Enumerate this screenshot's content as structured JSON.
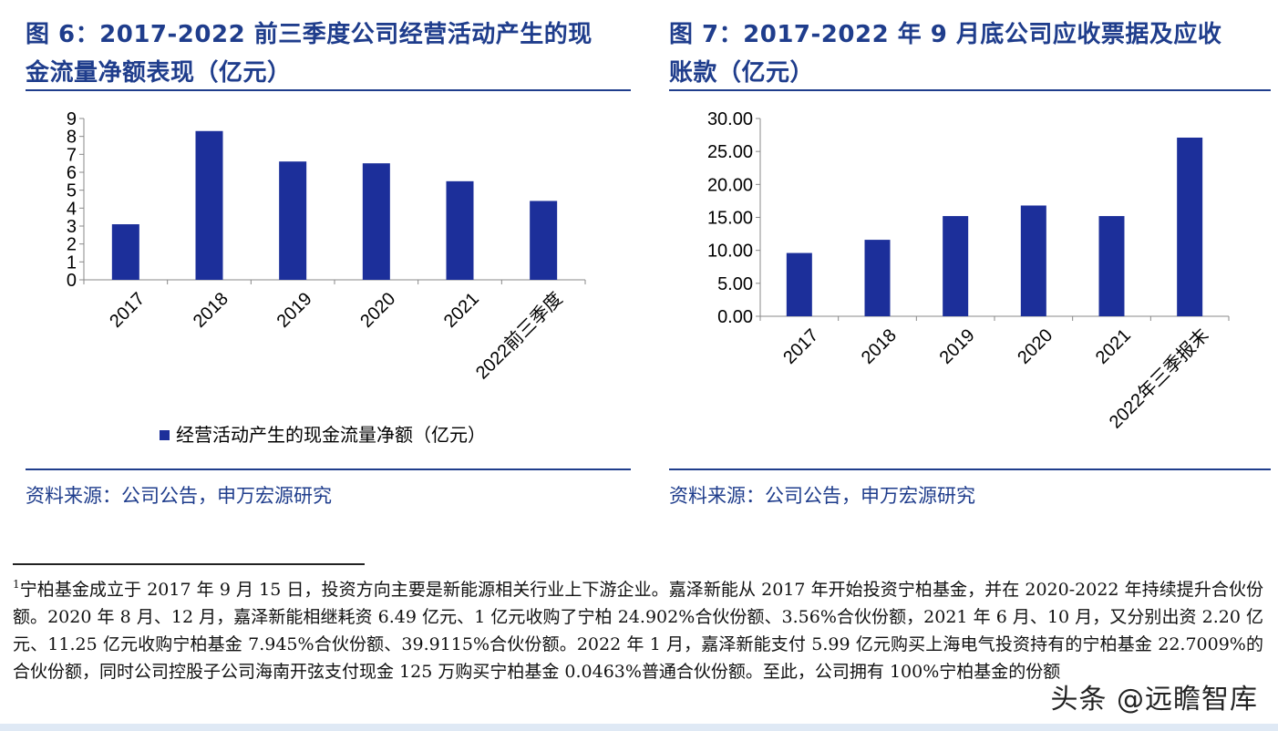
{
  "left": {
    "title_line1": "图 6：2017-2022 前三季度公司经营活动产生的现",
    "title_line2": "金流量净额表现（亿元）",
    "legend": "经营活动产生的现金流量净额（亿元）",
    "source": "资料来源：公司公告，申万宏源研究"
  },
  "right": {
    "title_line1": "图 7：2017-2022 年 9 月底公司应收票据及应收",
    "title_line2": "账款（亿元）",
    "source": "资料来源：公司公告，申万宏源研究"
  },
  "colors": {
    "bar": "#1c2f9a",
    "title": "#1f3d8c",
    "axis": "#888888"
  },
  "chart_data": [
    {
      "type": "bar",
      "title": "图 6：2017-2022 前三季度公司经营活动产生的现金流量净额表现（亿元）",
      "categories": [
        "2017",
        "2018",
        "2019",
        "2020",
        "2021",
        "2022前三季度"
      ],
      "series": [
        {
          "name": "经营活动产生的现金流量净额（亿元）",
          "values": [
            3.1,
            8.3,
            6.6,
            6.5,
            5.5,
            4.4
          ]
        }
      ],
      "yticks": [
        "0",
        "1",
        "2",
        "3",
        "4",
        "5",
        "6",
        "7",
        "8",
        "9"
      ],
      "ylim": [
        0,
        9
      ],
      "grid": false,
      "legend_position": "bottom"
    },
    {
      "type": "bar",
      "title": "图 7：2017-2022 年 9 月底公司应收票据及应收账款（亿元）",
      "categories": [
        "2017",
        "2018",
        "2019",
        "2020",
        "2021",
        "2022年三季报末"
      ],
      "series": [
        {
          "values": [
            9.6,
            11.6,
            15.2,
            16.8,
            15.2,
            27.1
          ]
        }
      ],
      "yticks": [
        "0.00",
        "5.00",
        "10.00",
        "15.00",
        "20.00",
        "25.00",
        "30.00"
      ],
      "ylim": [
        0,
        30
      ],
      "grid": false,
      "legend_position": "none"
    }
  ],
  "footnote": {
    "marker": "1",
    "text": "宁柏基金成立于 2017 年 9 月 15 日，投资方向主要是新能源相关行业上下游企业。嘉泽新能从 2017 年开始投资宁柏基金，并在 2020-2022 年持续提升合伙份额。2020 年 8 月、12 月，嘉泽新能相继耗资 6.49 亿元、1 亿元收购了宁柏 24.902%合伙份额、3.56%合伙份额，2021 年 6 月、10 月，又分别出资 2.20 亿元、11.25 亿元收购宁柏基金 7.945%合伙份额、39.9115%合伙份额。2022 年 1 月，嘉泽新能支付 5.99 亿元购买上海电气投资持有的宁柏基金 22.7009%的合伙份额，同时公司控股子公司海南开弦支付现金 125 万购买宁柏基金 0.0463%普通合伙份额。至此，公司拥有 100%宁柏基金的份额"
  },
  "watermark": "头条 @远瞻智库"
}
